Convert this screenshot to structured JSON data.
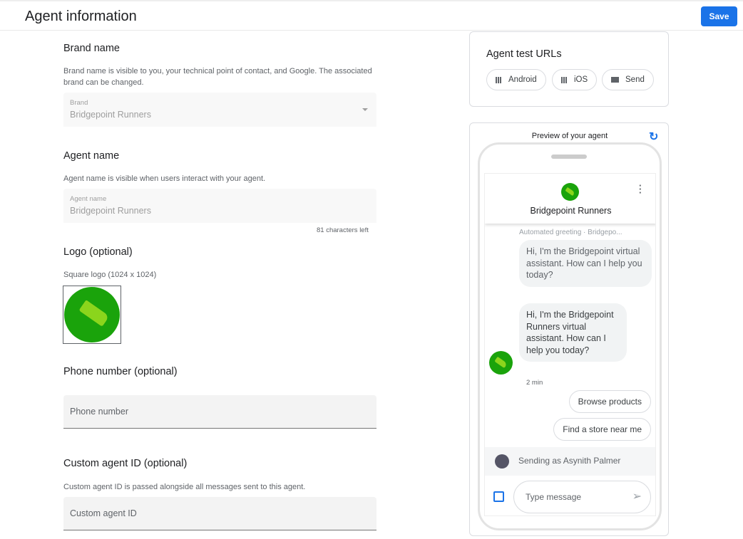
{
  "header": {
    "title": "Agent information",
    "save_label": "Save"
  },
  "brand": {
    "heading": "Brand name",
    "description": "Brand name is visible to you, your technical point of contact, and Google. The associated brand can be changed.",
    "field_label": "Brand",
    "value": "Bridgepoint Runners"
  },
  "agent_name": {
    "heading": "Agent name",
    "description": "Agent name is visible when users interact with your agent.",
    "field_label": "Agent name",
    "value": "Bridgepoint Runners",
    "counter": "81 characters left"
  },
  "logo": {
    "heading": "Logo (optional)",
    "description": "Square logo (1024 x 1024)"
  },
  "phone": {
    "heading": "Phone number (optional)",
    "placeholder": "Phone number"
  },
  "custom_id": {
    "heading": "Custom agent ID (optional)",
    "description": "Custom agent ID is passed alongside all messages sent to this agent.",
    "placeholder": "Custom agent ID"
  },
  "test_urls": {
    "heading": "Agent test URLs",
    "buttons": [
      {
        "label": "Android",
        "icon": "qr-code-icon"
      },
      {
        "label": "iOS",
        "icon": "qr-code-icon"
      },
      {
        "label": "Send",
        "icon": "mail-icon"
      }
    ]
  },
  "preview": {
    "title": "Preview of your agent",
    "agent_name": "Bridgepoint Runners",
    "hidden_label": "Automated greeting · Bridgepo...",
    "hidden_message": "Hi, I'm the Bridgepoint virtual assistant. How can I help you today?",
    "message": "Hi, I'm the Bridgepoint Runners virtual assistant. How can I help you today?",
    "timestamp": "2 min",
    "suggestions": [
      "Browse products",
      "Find a store near me"
    ],
    "sending_as": "Sending as Asynith Palmer",
    "input_placeholder": "Type message"
  },
  "colors": {
    "accent": "#1a73e8",
    "logo_green": "#1aa30b"
  }
}
